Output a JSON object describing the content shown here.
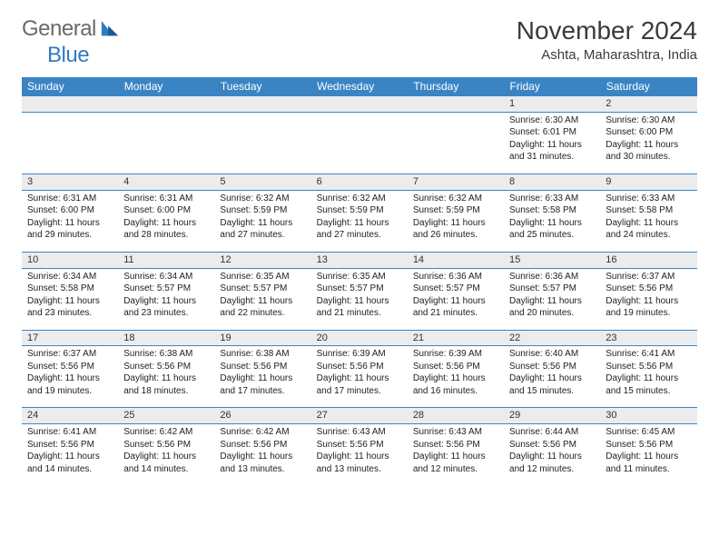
{
  "logo": {
    "word1": "General",
    "word2": "Blue"
  },
  "header": {
    "title": "November 2024",
    "location": "Ashta, Maharashtra, India"
  },
  "colors": {
    "headerBar": "#3b84c4",
    "dayStripe": "#ececec",
    "rule": "#3b84c4",
    "text": "#222222",
    "logoGray": "#6a6a6a",
    "logoBlue": "#2e7cc0"
  },
  "dayNames": [
    "Sunday",
    "Monday",
    "Tuesday",
    "Wednesday",
    "Thursday",
    "Friday",
    "Saturday"
  ],
  "weeks": [
    [
      null,
      null,
      null,
      null,
      null,
      {
        "n": "1",
        "sr": "6:30 AM",
        "ss": "6:01 PM",
        "dl": "11 hours and 31 minutes."
      },
      {
        "n": "2",
        "sr": "6:30 AM",
        "ss": "6:00 PM",
        "dl": "11 hours and 30 minutes."
      }
    ],
    [
      {
        "n": "3",
        "sr": "6:31 AM",
        "ss": "6:00 PM",
        "dl": "11 hours and 29 minutes."
      },
      {
        "n": "4",
        "sr": "6:31 AM",
        "ss": "6:00 PM",
        "dl": "11 hours and 28 minutes."
      },
      {
        "n": "5",
        "sr": "6:32 AM",
        "ss": "5:59 PM",
        "dl": "11 hours and 27 minutes."
      },
      {
        "n": "6",
        "sr": "6:32 AM",
        "ss": "5:59 PM",
        "dl": "11 hours and 27 minutes."
      },
      {
        "n": "7",
        "sr": "6:32 AM",
        "ss": "5:59 PM",
        "dl": "11 hours and 26 minutes."
      },
      {
        "n": "8",
        "sr": "6:33 AM",
        "ss": "5:58 PM",
        "dl": "11 hours and 25 minutes."
      },
      {
        "n": "9",
        "sr": "6:33 AM",
        "ss": "5:58 PM",
        "dl": "11 hours and 24 minutes."
      }
    ],
    [
      {
        "n": "10",
        "sr": "6:34 AM",
        "ss": "5:58 PM",
        "dl": "11 hours and 23 minutes."
      },
      {
        "n": "11",
        "sr": "6:34 AM",
        "ss": "5:57 PM",
        "dl": "11 hours and 23 minutes."
      },
      {
        "n": "12",
        "sr": "6:35 AM",
        "ss": "5:57 PM",
        "dl": "11 hours and 22 minutes."
      },
      {
        "n": "13",
        "sr": "6:35 AM",
        "ss": "5:57 PM",
        "dl": "11 hours and 21 minutes."
      },
      {
        "n": "14",
        "sr": "6:36 AM",
        "ss": "5:57 PM",
        "dl": "11 hours and 21 minutes."
      },
      {
        "n": "15",
        "sr": "6:36 AM",
        "ss": "5:57 PM",
        "dl": "11 hours and 20 minutes."
      },
      {
        "n": "16",
        "sr": "6:37 AM",
        "ss": "5:56 PM",
        "dl": "11 hours and 19 minutes."
      }
    ],
    [
      {
        "n": "17",
        "sr": "6:37 AM",
        "ss": "5:56 PM",
        "dl": "11 hours and 19 minutes."
      },
      {
        "n": "18",
        "sr": "6:38 AM",
        "ss": "5:56 PM",
        "dl": "11 hours and 18 minutes."
      },
      {
        "n": "19",
        "sr": "6:38 AM",
        "ss": "5:56 PM",
        "dl": "11 hours and 17 minutes."
      },
      {
        "n": "20",
        "sr": "6:39 AM",
        "ss": "5:56 PM",
        "dl": "11 hours and 17 minutes."
      },
      {
        "n": "21",
        "sr": "6:39 AM",
        "ss": "5:56 PM",
        "dl": "11 hours and 16 minutes."
      },
      {
        "n": "22",
        "sr": "6:40 AM",
        "ss": "5:56 PM",
        "dl": "11 hours and 15 minutes."
      },
      {
        "n": "23",
        "sr": "6:41 AM",
        "ss": "5:56 PM",
        "dl": "11 hours and 15 minutes."
      }
    ],
    [
      {
        "n": "24",
        "sr": "6:41 AM",
        "ss": "5:56 PM",
        "dl": "11 hours and 14 minutes."
      },
      {
        "n": "25",
        "sr": "6:42 AM",
        "ss": "5:56 PM",
        "dl": "11 hours and 14 minutes."
      },
      {
        "n": "26",
        "sr": "6:42 AM",
        "ss": "5:56 PM",
        "dl": "11 hours and 13 minutes."
      },
      {
        "n": "27",
        "sr": "6:43 AM",
        "ss": "5:56 PM",
        "dl": "11 hours and 13 minutes."
      },
      {
        "n": "28",
        "sr": "6:43 AM",
        "ss": "5:56 PM",
        "dl": "11 hours and 12 minutes."
      },
      {
        "n": "29",
        "sr": "6:44 AM",
        "ss": "5:56 PM",
        "dl": "11 hours and 12 minutes."
      },
      {
        "n": "30",
        "sr": "6:45 AM",
        "ss": "5:56 PM",
        "dl": "11 hours and 11 minutes."
      }
    ]
  ],
  "labels": {
    "sunrise": "Sunrise: ",
    "sunset": "Sunset: ",
    "daylight": "Daylight: "
  }
}
